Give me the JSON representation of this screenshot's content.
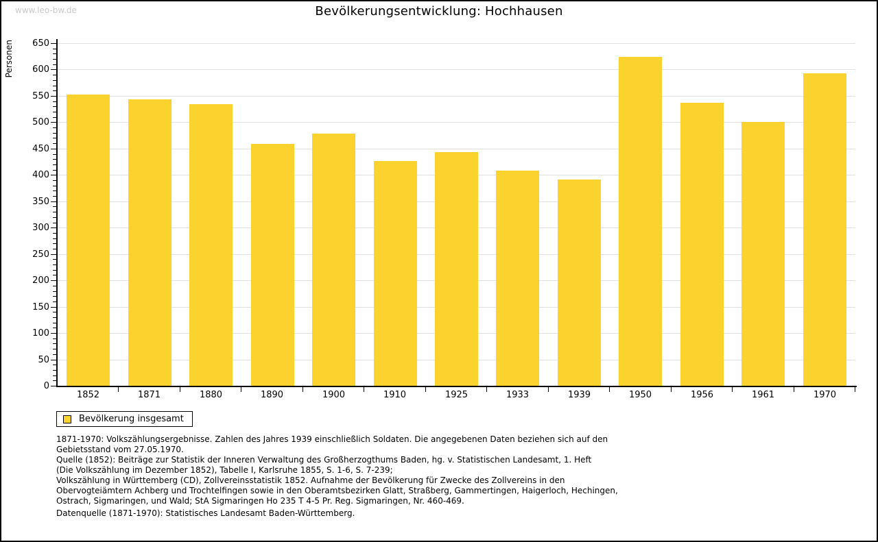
{
  "watermark": "www.leo-bw.de",
  "title": "Bevölkerungsentwicklung: Hochhausen",
  "chart_data": {
    "type": "bar",
    "title": "Bevölkerungsentwicklung: Hochhausen",
    "xlabel": "",
    "ylabel": "Personen",
    "ylim": [
      0,
      650
    ],
    "ytick_step": 50,
    "minor_tick_step": 10,
    "grid": true,
    "bar_color": "#FCD32E",
    "gridline_color": "#e0e0e0",
    "legend_position": "bottom-left",
    "categories": [
      "1852",
      "1871",
      "1880",
      "1890",
      "1900",
      "1910",
      "1925",
      "1933",
      "1939",
      "1950",
      "1956",
      "1961",
      "1970"
    ],
    "series": [
      {
        "name": "Bevölkerung insgesamt",
        "values": [
          552,
          543,
          534,
          459,
          478,
          427,
          443,
          408,
          391,
          624,
          537,
          500,
          593
        ]
      }
    ]
  },
  "legend": {
    "label": "Bevölkerung insgesamt",
    "swatch_color": "#FCD32E"
  },
  "footnotes": [
    "1871-1970: Volkszählungsergebnisse. Zahlen des Jahres 1939 einschließlich Soldaten. Die angegebenen Daten beziehen sich auf den",
    "Gebietsstand vom 27.05.1970.",
    "Quelle (1852): Beiträge zur Statistik der Inneren Verwaltung des Großherzogthums Baden, hg. v. Statistischen Landesamt, 1. Heft",
    "(Die Volkszählung im Dezember 1852), Tabelle I, Karlsruhe 1855, S. 1-6, S. 7-239;",
    "Volkszählung in Württemberg (CD), Zollvereinsstatistik 1852. Aufnahme der Bevölkerung für Zwecke des Zollvereins in den",
    "Obervogteiämtern Achberg und Trochtelfingen sowie in den Oberamtsbezirken Glatt, Straßberg, Gammertingen, Haigerloch, Hechingen,",
    "Ostrach, Sigmaringen, und Wald; StA Sigmaringen Ho 235 T 4-5 Pr. Reg. Sigmaringen, Nr. 460-469."
  ],
  "datasource": "Datenquelle (1871-1970): Statistisches Landesamt Baden-Württemberg."
}
